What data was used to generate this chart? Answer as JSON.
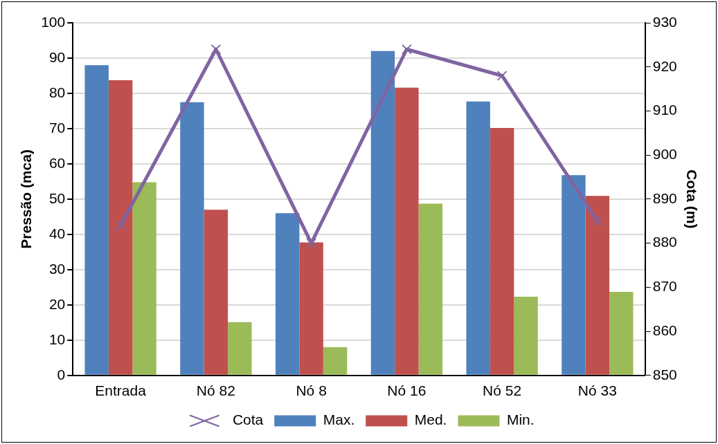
{
  "chart_data": {
    "type": "bar",
    "ylabel": "Pressão (mca)",
    "y2label": "Cota (m)",
    "categories": [
      "Entrada",
      "Nó 82",
      "Nó 8",
      "Nó 16",
      "Nó 52",
      "Nó 33"
    ],
    "series": [
      {
        "name": "Max.",
        "color": "#4f81bd",
        "values": [
          88,
          77.5,
          46,
          92,
          77.7,
          56.8
        ]
      },
      {
        "name": "Med.",
        "color": "#c0504d",
        "values": [
          83.7,
          47,
          37.7,
          81.6,
          70.2,
          50.9
        ]
      },
      {
        "name": "Min.",
        "color": "#9bbb59",
        "values": [
          54.8,
          15.1,
          8,
          48.7,
          22.3,
          23.7
        ]
      },
      {
        "name": "Cota",
        "type": "line",
        "axis": "y2",
        "color": "#8064a2",
        "marker": "cross",
        "values": [
          884,
          924,
          880,
          924,
          918,
          885
        ]
      }
    ],
    "ylim": [
      0,
      100
    ],
    "yticks": [
      0,
      10,
      20,
      30,
      40,
      50,
      60,
      70,
      80,
      90,
      100
    ],
    "y2lim": [
      850,
      930
    ],
    "y2ticks": [
      850,
      860,
      870,
      880,
      890,
      900,
      910,
      920,
      930
    ],
    "grid": "y",
    "legend": "bottom"
  }
}
